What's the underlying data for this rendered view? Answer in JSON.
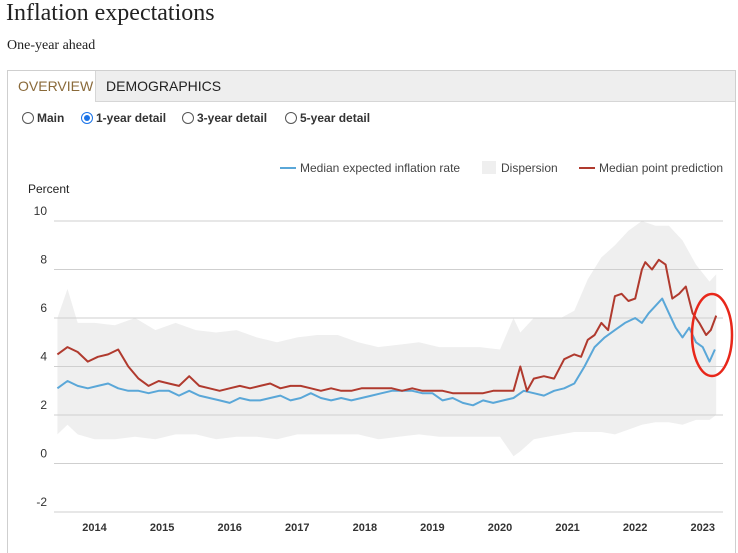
{
  "page": {
    "title": "Inflation expectations",
    "subtitle": "One-year ahead"
  },
  "tabs": [
    {
      "label": "OVERVIEW",
      "active": true
    },
    {
      "label": "DEMOGRAPHICS",
      "active": false
    }
  ],
  "views": [
    {
      "label": "Main",
      "selected": false
    },
    {
      "label": "1-year detail",
      "selected": true
    },
    {
      "label": "3-year detail",
      "selected": false
    },
    {
      "label": "5-year detail",
      "selected": false
    }
  ],
  "colors": {
    "median_expected": "#5aa7d8",
    "dispersion": "#efefef",
    "median_point": "#b03a2e",
    "highlight": "#e8271a",
    "tab_active_text": "#8a6a3a"
  },
  "chart_data": {
    "type": "line",
    "ylabel": "Percent",
    "ylim": [
      -2,
      10
    ],
    "yticks": [
      10,
      8,
      6,
      4,
      2,
      0,
      -2
    ],
    "xlim": [
      2013.4,
      2023.3
    ],
    "xticks": [
      2014,
      2015,
      2016,
      2017,
      2018,
      2019,
      2020,
      2021,
      2022,
      2023
    ],
    "grid": true,
    "legend_position": "top-right",
    "legend": [
      "Median expected inflation rate",
      "Dispersion",
      "Median point prediction"
    ],
    "annotation": "red circle around latest 2023 values",
    "series": [
      {
        "name": "Median expected inflation rate",
        "kind": "line",
        "x": [
          2013.45,
          2013.6,
          2013.75,
          2013.9,
          2014.05,
          2014.2,
          2014.35,
          2014.5,
          2014.65,
          2014.8,
          2014.95,
          2015.1,
          2015.25,
          2015.4,
          2015.55,
          2015.7,
          2015.85,
          2016.0,
          2016.15,
          2016.3,
          2016.45,
          2016.6,
          2016.75,
          2016.9,
          2017.05,
          2017.2,
          2017.35,
          2017.5,
          2017.65,
          2017.8,
          2017.95,
          2018.1,
          2018.25,
          2018.4,
          2018.55,
          2018.7,
          2018.85,
          2019.0,
          2019.15,
          2019.3,
          2019.45,
          2019.6,
          2019.75,
          2019.9,
          2020.05,
          2020.2,
          2020.35,
          2020.5,
          2020.65,
          2020.8,
          2020.95,
          2021.1,
          2021.25,
          2021.4,
          2021.55,
          2021.7,
          2021.85,
          2022.0,
          2022.1,
          2022.2,
          2022.3,
          2022.4,
          2022.5,
          2022.6,
          2022.7,
          2022.8,
          2022.9,
          2023.0,
          2023.1,
          2023.18
        ],
        "y": [
          3.1,
          3.4,
          3.2,
          3.1,
          3.2,
          3.3,
          3.1,
          3.0,
          3.0,
          2.9,
          3.0,
          3.0,
          2.8,
          3.0,
          2.8,
          2.7,
          2.6,
          2.5,
          2.7,
          2.6,
          2.6,
          2.7,
          2.8,
          2.6,
          2.7,
          2.9,
          2.7,
          2.6,
          2.7,
          2.6,
          2.7,
          2.8,
          2.9,
          3.0,
          3.0,
          3.0,
          2.9,
          2.9,
          2.6,
          2.7,
          2.5,
          2.4,
          2.6,
          2.5,
          2.6,
          2.7,
          3.0,
          2.9,
          2.8,
          3.0,
          3.1,
          3.3,
          4.0,
          4.8,
          5.2,
          5.5,
          5.8,
          6.0,
          5.8,
          6.2,
          6.5,
          6.8,
          6.2,
          5.6,
          5.2,
          5.6,
          5.0,
          4.8,
          4.2,
          4.7
        ]
      },
      {
        "name": "Median point prediction",
        "kind": "line",
        "x": [
          2013.45,
          2013.6,
          2013.75,
          2013.9,
          2014.05,
          2014.2,
          2014.35,
          2014.5,
          2014.65,
          2014.8,
          2014.95,
          2015.1,
          2015.25,
          2015.4,
          2015.55,
          2015.7,
          2015.85,
          2016.0,
          2016.15,
          2016.3,
          2016.45,
          2016.6,
          2016.75,
          2016.9,
          2017.05,
          2017.2,
          2017.35,
          2017.5,
          2017.65,
          2017.8,
          2017.95,
          2018.1,
          2018.25,
          2018.4,
          2018.55,
          2018.7,
          2018.85,
          2019.0,
          2019.15,
          2019.3,
          2019.45,
          2019.6,
          2019.75,
          2019.9,
          2020.05,
          2020.2,
          2020.3,
          2020.4,
          2020.5,
          2020.65,
          2020.8,
          2020.95,
          2021.1,
          2021.2,
          2021.3,
          2021.4,
          2021.5,
          2021.6,
          2021.7,
          2021.8,
          2021.9,
          2022.0,
          2022.1,
          2022.15,
          2022.25,
          2022.35,
          2022.45,
          2022.55,
          2022.65,
          2022.75,
          2022.85,
          2022.95,
          2023.05,
          2023.12,
          2023.2
        ],
        "y": [
          4.5,
          4.8,
          4.6,
          4.2,
          4.4,
          4.5,
          4.7,
          4.0,
          3.5,
          3.2,
          3.4,
          3.3,
          3.2,
          3.6,
          3.2,
          3.1,
          3.0,
          3.1,
          3.2,
          3.1,
          3.2,
          3.3,
          3.1,
          3.2,
          3.2,
          3.1,
          3.0,
          3.1,
          3.0,
          3.0,
          3.1,
          3.1,
          3.1,
          3.1,
          3.0,
          3.1,
          3.0,
          3.0,
          3.0,
          2.9,
          2.9,
          2.9,
          2.9,
          3.0,
          3.0,
          3.0,
          4.0,
          3.0,
          3.5,
          3.6,
          3.5,
          4.3,
          4.5,
          4.4,
          5.1,
          5.3,
          5.8,
          5.5,
          6.9,
          7.0,
          6.7,
          6.8,
          8.0,
          8.3,
          8.0,
          8.4,
          8.2,
          6.8,
          7.0,
          7.3,
          6.2,
          5.8,
          5.3,
          5.5,
          6.1
        ]
      },
      {
        "name": "Dispersion",
        "kind": "band",
        "x": [
          2013.45,
          2013.6,
          2013.75,
          2014.0,
          2014.3,
          2014.6,
          2014.9,
          2015.2,
          2015.5,
          2015.8,
          2016.1,
          2016.4,
          2016.7,
          2017.0,
          2017.3,
          2017.6,
          2017.9,
          2018.2,
          2018.5,
          2018.8,
          2019.1,
          2019.4,
          2019.7,
          2020.0,
          2020.2,
          2020.3,
          2020.5,
          2020.7,
          2020.9,
          2021.1,
          2021.3,
          2021.5,
          2021.7,
          2021.9,
          2022.1,
          2022.3,
          2022.5,
          2022.7,
          2022.9,
          2023.1,
          2023.2
        ],
        "low": [
          1.2,
          1.6,
          1.2,
          1.0,
          1.0,
          1.1,
          1.0,
          1.2,
          1.2,
          1.0,
          1.1,
          1.1,
          1.0,
          1.2,
          1.2,
          1.2,
          1.2,
          1.0,
          1.1,
          1.2,
          1.1,
          1.1,
          1.1,
          1.1,
          0.3,
          0.5,
          1.0,
          1.1,
          1.2,
          1.3,
          1.3,
          1.3,
          1.2,
          1.4,
          1.6,
          1.7,
          1.7,
          1.6,
          1.8,
          1.8,
          2.0
        ],
        "high": [
          6.0,
          7.2,
          5.8,
          5.8,
          5.7,
          6.0,
          5.5,
          5.8,
          5.5,
          5.4,
          5.5,
          5.2,
          5.0,
          5.2,
          5.3,
          5.3,
          5.0,
          4.8,
          4.9,
          5.0,
          4.8,
          4.8,
          4.8,
          4.7,
          6.0,
          5.4,
          6.0,
          6.0,
          6.0,
          6.3,
          7.6,
          8.5,
          9.0,
          9.6,
          10.0,
          9.8,
          9.8,
          9.2,
          8.2,
          7.5,
          7.8
        ]
      }
    ]
  }
}
